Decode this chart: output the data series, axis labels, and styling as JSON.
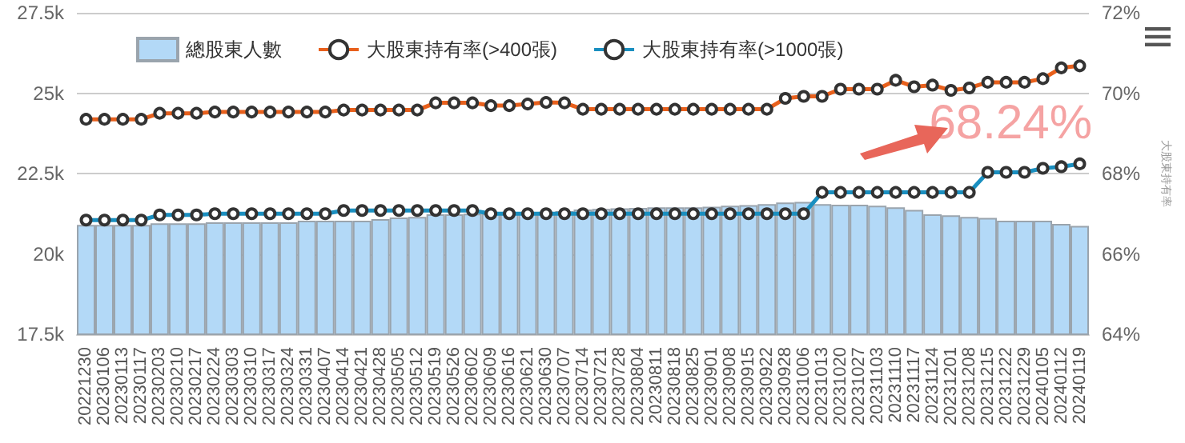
{
  "chart_data": {
    "type": "bar",
    "y2label": "大股東持有率",
    "categories": [
      "20221230",
      "20230106",
      "20230113",
      "20230117",
      "20230203",
      "20230210",
      "20230217",
      "20230224",
      "20230303",
      "20230310",
      "20230317",
      "20230324",
      "20230331",
      "20230407",
      "20230414",
      "20230421",
      "20230428",
      "20230505",
      "20230512",
      "20230519",
      "20230526",
      "20230602",
      "20230609",
      "20230616",
      "20230621",
      "20230630",
      "20230707",
      "20230714",
      "20230721",
      "20230728",
      "20230804",
      "20230811",
      "20230818",
      "20230825",
      "20230901",
      "20230908",
      "20230915",
      "20230922",
      "20230928",
      "20231006",
      "20231013",
      "20231020",
      "20231027",
      "20231103",
      "20231110",
      "20231117",
      "20231124",
      "20231201",
      "20231208",
      "20231215",
      "20231222",
      "20231229",
      "20240105",
      "20240112",
      "20240119"
    ],
    "series": [
      {
        "name": "總股東人數",
        "color": "#b3d9f7",
        "values": [
          20900,
          20900,
          20900,
          20900,
          20950,
          20950,
          20950,
          20980,
          20980,
          20980,
          20980,
          20980,
          21030,
          21030,
          21030,
          21030,
          21080,
          21130,
          21150,
          21230,
          21230,
          21250,
          21250,
          21280,
          21280,
          21300,
          21330,
          21380,
          21400,
          21420,
          21430,
          21450,
          21450,
          21450,
          21470,
          21500,
          21520,
          21550,
          21600,
          21620,
          21550,
          21530,
          21530,
          21500,
          21450,
          21370,
          21230,
          21200,
          21150,
          21120,
          21030,
          21030,
          21030,
          20930,
          20870
        ]
      },
      {
        "name": "大股東持有率(>400張)",
        "type": "line",
        "axis": "y2",
        "color": "#e8601c",
        "values": [
          69.35,
          69.35,
          69.35,
          69.35,
          69.5,
          69.5,
          69.5,
          69.53,
          69.53,
          69.53,
          69.53,
          69.53,
          69.53,
          69.53,
          69.58,
          69.58,
          69.58,
          69.58,
          69.58,
          69.76,
          69.76,
          69.76,
          69.69,
          69.69,
          69.73,
          69.77,
          69.76,
          69.6,
          69.6,
          69.6,
          69.6,
          69.6,
          69.6,
          69.6,
          69.6,
          69.6,
          69.6,
          69.6,
          69.87,
          69.92,
          69.92,
          70.1,
          70.1,
          70.1,
          70.32,
          70.16,
          70.2,
          70.07,
          70.13,
          70.27,
          70.27,
          70.27,
          70.36,
          70.63,
          70.68
        ]
      },
      {
        "name": "大股東持有率(>1000張)",
        "type": "line",
        "axis": "y2",
        "color": "#1a8fc0",
        "values": [
          66.84,
          66.84,
          66.84,
          66.84,
          66.97,
          66.97,
          66.97,
          67.0,
          67.0,
          67.0,
          67.0,
          67.0,
          67.0,
          67.0,
          67.08,
          67.08,
          67.08,
          67.08,
          67.08,
          67.08,
          67.08,
          67.08,
          67.0,
          67.0,
          67.0,
          67.0,
          67.0,
          67.0,
          67.0,
          67.0,
          67.0,
          67.0,
          67.0,
          67.0,
          67.0,
          67.0,
          67.0,
          67.0,
          67.0,
          67.0,
          67.53,
          67.53,
          67.53,
          67.53,
          67.53,
          67.53,
          67.53,
          67.53,
          67.53,
          68.03,
          68.03,
          68.03,
          68.13,
          68.17,
          68.24
        ]
      }
    ],
    "annotations": [
      "68.24%"
    ],
    "ylim": [
      17500,
      27500
    ],
    "yticks": [
      {
        "value": 17500,
        "label": "17.5k"
      },
      {
        "value": 20000,
        "label": "20k"
      },
      {
        "value": 22500,
        "label": "22.5k"
      },
      {
        "value": 25000,
        "label": "25k"
      },
      {
        "value": 27500,
        "label": "27.5k"
      }
    ],
    "y2lim": [
      64,
      72
    ],
    "y2ticks": [
      {
        "value": 64,
        "label": "64%"
      },
      {
        "value": 66,
        "label": "66%"
      },
      {
        "value": 68,
        "label": "68%"
      },
      {
        "value": 70,
        "label": "70%"
      },
      {
        "value": 72,
        "label": "72%"
      }
    ],
    "grid": "y",
    "legend": "top",
    "marker": "circle",
    "line_style": "solid"
  }
}
